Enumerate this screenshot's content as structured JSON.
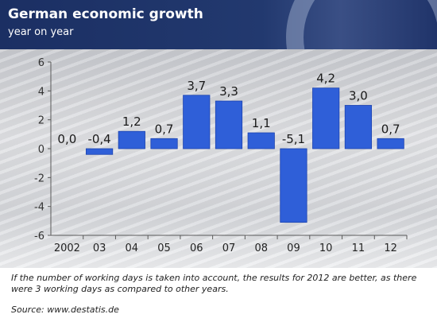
{
  "header": {
    "title": "German economic growth",
    "subtitle": "year on year"
  },
  "footnote": "If the number of working days is taken into account, the results for 2012 are better, as there were 3 working days as compared to other years.",
  "source": "Source: www.destatis.de",
  "colors": {
    "header_bg": "#1f3468",
    "bar": "#2f5fd8",
    "bar_edge": "#1c43b0"
  },
  "chart_data": {
    "type": "bar",
    "title": "German economic growth",
    "subtitle": "year on year",
    "xlabel": "",
    "ylabel": "",
    "categories": [
      "2002",
      "03",
      "04",
      "05",
      "06",
      "07",
      "08",
      "09",
      "10",
      "11",
      "12"
    ],
    "values": [
      0.0,
      -0.4,
      1.2,
      0.7,
      3.7,
      3.3,
      1.1,
      -5.1,
      4.2,
      3.0,
      0.7
    ],
    "value_labels": [
      "0,0",
      "-0,4",
      "1,2",
      "0,7",
      "3,7",
      "3,3",
      "1,1",
      "-5,1",
      "4,2",
      "3,0",
      "0,7"
    ],
    "yticks": [
      6,
      4,
      2,
      0,
      -2,
      -4,
      -6
    ],
    "ylim": [
      -6,
      6
    ],
    "grid": false,
    "legend": "none"
  }
}
